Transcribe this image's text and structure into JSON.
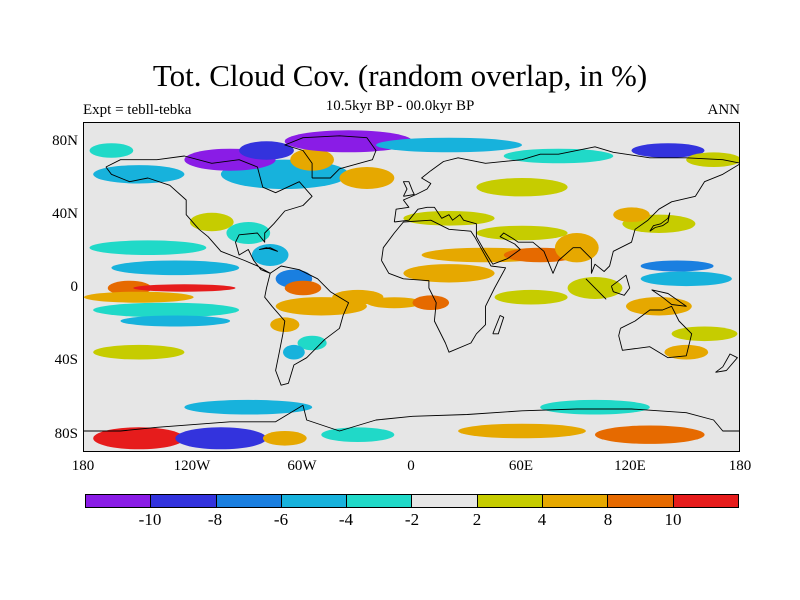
{
  "title": "Tot. Cloud Cov. (random overlap, in %)",
  "subtitle_left": "Expt = tebll-tebka",
  "subtitle_center": "10.5kyr BP - 00.0kyr BP",
  "subtitle_right": "ANN",
  "x_axis": {
    "ticks": [
      "180",
      "120W",
      "60W",
      "0",
      "60E",
      "120E",
      "180"
    ],
    "values": [
      -180,
      -120,
      -60,
      0,
      60,
      120,
      180
    ]
  },
  "y_axis": {
    "ticks": [
      "80N",
      "40N",
      "0",
      "40S",
      "80S"
    ],
    "values": [
      80,
      40,
      0,
      -40,
      -80
    ]
  },
  "extent": {
    "lon": [
      -180,
      180
    ],
    "lat": [
      -90,
      90
    ]
  },
  "colorbar": {
    "labels": [
      "-10",
      "-8",
      "-6",
      "-4",
      "-2",
      "2",
      "4",
      "8",
      "10"
    ],
    "colors": [
      "#8a1ce6",
      "#3333dd",
      "#1a7fe0",
      "#17b2dc",
      "#20d9c8",
      "#e6e6e6",
      "#c6cc00",
      "#e6a800",
      "#e66a00",
      "#e61c1c"
    ]
  },
  "background_color": "#e6e6e6",
  "regions": [
    {
      "lon": -155,
      "lat": 0,
      "rx": 12,
      "ry": 4,
      "color": "#e66a00"
    },
    {
      "lon": -125,
      "lat": 0,
      "rx": 28,
      "ry": 2,
      "color": "#e61c1c"
    },
    {
      "lon": -150,
      "lat": -5,
      "rx": 30,
      "ry": 3,
      "color": "#e6a800"
    },
    {
      "lon": -130,
      "lat": 11,
      "rx": 35,
      "ry": 4,
      "color": "#17b2dc"
    },
    {
      "lon": -145,
      "lat": 22,
      "rx": 32,
      "ry": 4,
      "color": "#20d9c8"
    },
    {
      "lon": -135,
      "lat": -12,
      "rx": 40,
      "ry": 4,
      "color": "#20d9c8"
    },
    {
      "lon": -130,
      "lat": -18,
      "rx": 30,
      "ry": 3,
      "color": "#17b2dc"
    },
    {
      "lon": -150,
      "lat": -35,
      "rx": 25,
      "ry": 4,
      "color": "#c6cc00"
    },
    {
      "lon": -110,
      "lat": 36,
      "rx": 12,
      "ry": 5,
      "color": "#c6cc00"
    },
    {
      "lon": -90,
      "lat": 30,
      "rx": 12,
      "ry": 6,
      "color": "#20d9c8"
    },
    {
      "lon": -78,
      "lat": 18,
      "rx": 10,
      "ry": 6,
      "color": "#17b2dc"
    },
    {
      "lon": -65,
      "lat": 5,
      "rx": 10,
      "ry": 5,
      "color": "#1a7fe0"
    },
    {
      "lon": -60,
      "lat": 0,
      "rx": 10,
      "ry": 4,
      "color": "#e66a00"
    },
    {
      "lon": -50,
      "lat": -10,
      "rx": 25,
      "ry": 5,
      "color": "#e6a800"
    },
    {
      "lon": -70,
      "lat": -20,
      "rx": 8,
      "ry": 4,
      "color": "#e6a800"
    },
    {
      "lon": -55,
      "lat": -30,
      "rx": 8,
      "ry": 4,
      "color": "#20d9c8"
    },
    {
      "lon": -65,
      "lat": -35,
      "rx": 6,
      "ry": 4,
      "color": "#17b2dc"
    },
    {
      "lon": -30,
      "lat": -5,
      "rx": 14,
      "ry": 4,
      "color": "#e6a800"
    },
    {
      "lon": -10,
      "lat": -8,
      "rx": 15,
      "ry": 3,
      "color": "#e6a800"
    },
    {
      "lon": 10,
      "lat": -8,
      "rx": 10,
      "ry": 4,
      "color": "#e66a00"
    },
    {
      "lon": 20,
      "lat": 8,
      "rx": 25,
      "ry": 5,
      "color": "#e6a800"
    },
    {
      "lon": 40,
      "lat": 18,
      "rx": 35,
      "ry": 4,
      "color": "#e6a800"
    },
    {
      "lon": 70,
      "lat": 18,
      "rx": 20,
      "ry": 4,
      "color": "#e66a00"
    },
    {
      "lon": 90,
      "lat": 22,
      "rx": 12,
      "ry": 8,
      "color": "#e6a800"
    },
    {
      "lon": 60,
      "lat": 30,
      "rx": 25,
      "ry": 4,
      "color": "#c6cc00"
    },
    {
      "lon": 65,
      "lat": -5,
      "rx": 20,
      "ry": 4,
      "color": "#c6cc00"
    },
    {
      "lon": 100,
      "lat": 0,
      "rx": 15,
      "ry": 6,
      "color": "#c6cc00"
    },
    {
      "lon": 150,
      "lat": 5,
      "rx": 25,
      "ry": 4,
      "color": "#17b2dc"
    },
    {
      "lon": 145,
      "lat": 12,
      "rx": 20,
      "ry": 3,
      "color": "#1a7fe0"
    },
    {
      "lon": 135,
      "lat": -10,
      "rx": 18,
      "ry": 5,
      "color": "#e6a800"
    },
    {
      "lon": 160,
      "lat": -25,
      "rx": 18,
      "ry": 4,
      "color": "#c6cc00"
    },
    {
      "lon": 150,
      "lat": -35,
      "rx": 12,
      "ry": 4,
      "color": "#e6a800"
    },
    {
      "lon": 135,
      "lat": 35,
      "rx": 20,
      "ry": 5,
      "color": "#c6cc00"
    },
    {
      "lon": 120,
      "lat": 40,
      "rx": 10,
      "ry": 4,
      "color": "#e6a800"
    },
    {
      "lon": 20,
      "lat": 38,
      "rx": 25,
      "ry": 4,
      "color": "#c6cc00"
    },
    {
      "lon": -70,
      "lat": 62,
      "rx": 35,
      "ry": 8,
      "color": "#17b2dc"
    },
    {
      "lon": -100,
      "lat": 70,
      "rx": 25,
      "ry": 6,
      "color": "#8a1ce6"
    },
    {
      "lon": -80,
      "lat": 75,
      "rx": 15,
      "ry": 5,
      "color": "#3333dd"
    },
    {
      "lon": -55,
      "lat": 70,
      "rx": 12,
      "ry": 6,
      "color": "#e6a800"
    },
    {
      "lon": -25,
      "lat": 60,
      "rx": 15,
      "ry": 6,
      "color": "#e6a800"
    },
    {
      "lon": -35,
      "lat": 80,
      "rx": 35,
      "ry": 6,
      "color": "#8a1ce6"
    },
    {
      "lon": 20,
      "lat": 78,
      "rx": 40,
      "ry": 4,
      "color": "#17b2dc"
    },
    {
      "lon": 80,
      "lat": 72,
      "rx": 30,
      "ry": 4,
      "color": "#20d9c8"
    },
    {
      "lon": 140,
      "lat": 75,
      "rx": 20,
      "ry": 4,
      "color": "#3333dd"
    },
    {
      "lon": 165,
      "lat": 70,
      "rx": 15,
      "ry": 4,
      "color": "#c6cc00"
    },
    {
      "lon": 60,
      "lat": 55,
      "rx": 25,
      "ry": 5,
      "color": "#c6cc00"
    },
    {
      "lon": -150,
      "lat": 62,
      "rx": 25,
      "ry": 5,
      "color": "#17b2dc"
    },
    {
      "lon": -165,
      "lat": 75,
      "rx": 12,
      "ry": 4,
      "color": "#20d9c8"
    },
    {
      "lon": -150,
      "lat": -82,
      "rx": 25,
      "ry": 6,
      "color": "#e61c1c"
    },
    {
      "lon": -105,
      "lat": -82,
      "rx": 25,
      "ry": 6,
      "color": "#3333dd"
    },
    {
      "lon": -70,
      "lat": -82,
      "rx": 12,
      "ry": 4,
      "color": "#e6a800"
    },
    {
      "lon": -30,
      "lat": -80,
      "rx": 20,
      "ry": 4,
      "color": "#20d9c8"
    },
    {
      "lon": 60,
      "lat": -78,
      "rx": 35,
      "ry": 4,
      "color": "#e6a800"
    },
    {
      "lon": 130,
      "lat": -80,
      "rx": 30,
      "ry": 5,
      "color": "#e66a00"
    },
    {
      "lon": 100,
      "lat": -65,
      "rx": 30,
      "ry": 4,
      "color": "#20d9c8"
    },
    {
      "lon": -90,
      "lat": -65,
      "rx": 35,
      "ry": 4,
      "color": "#17b2dc"
    }
  ],
  "coastlines": [
    [
      [
        -168,
        66
      ],
      [
        -160,
        70
      ],
      [
        -140,
        70
      ],
      [
        -125,
        72
      ],
      [
        -110,
        68
      ],
      [
        -95,
        70
      ],
      [
        -85,
        66
      ],
      [
        -82,
        55
      ],
      [
        -75,
        52
      ],
      [
        -62,
        58
      ],
      [
        -55,
        50
      ],
      [
        -60,
        45
      ],
      [
        -70,
        42
      ],
      [
        -76,
        35
      ],
      [
        -81,
        30
      ],
      [
        -81,
        25
      ],
      [
        -85,
        30
      ],
      [
        -95,
        29
      ],
      [
        -97,
        25
      ],
      [
        -95,
        18
      ],
      [
        -90,
        21
      ],
      [
        -87,
        15
      ],
      [
        -83,
        10
      ],
      [
        -78,
        8
      ],
      [
        -85,
        12
      ],
      [
        -92,
        15
      ],
      [
        -105,
        20
      ],
      [
        -112,
        28
      ],
      [
        -117,
        32
      ],
      [
        -124,
        40
      ],
      [
        -124,
        48
      ],
      [
        -133,
        56
      ],
      [
        -145,
        60
      ],
      [
        -155,
        58
      ],
      [
        -165,
        62
      ],
      [
        -168,
        66
      ]
    ],
    [
      [
        -78,
        8
      ],
      [
        -72,
        12
      ],
      [
        -62,
        10
      ],
      [
        -52,
        5
      ],
      [
        -45,
        -2
      ],
      [
        -35,
        -8
      ],
      [
        -38,
        -15
      ],
      [
        -40,
        -22
      ],
      [
        -48,
        -28
      ],
      [
        -58,
        -38
      ],
      [
        -65,
        -42
      ],
      [
        -68,
        -52
      ],
      [
        -72,
        -53
      ],
      [
        -75,
        -45
      ],
      [
        -73,
        -35
      ],
      [
        -71,
        -25
      ],
      [
        -70,
        -18
      ],
      [
        -77,
        -10
      ],
      [
        -81,
        -5
      ],
      [
        -80,
        0
      ],
      [
        -78,
        8
      ]
    ],
    [
      [
        -17,
        15
      ],
      [
        -16,
        22
      ],
      [
        -10,
        30
      ],
      [
        -5,
        36
      ],
      [
        10,
        37
      ],
      [
        20,
        32
      ],
      [
        32,
        31
      ],
      [
        34,
        28
      ],
      [
        43,
        12
      ],
      [
        51,
        11
      ],
      [
        45,
        0
      ],
      [
        40,
        -10
      ],
      [
        40,
        -20
      ],
      [
        35,
        -25
      ],
      [
        32,
        -30
      ],
      [
        20,
        -35
      ],
      [
        18,
        -30
      ],
      [
        12,
        -18
      ],
      [
        13,
        -8
      ],
      [
        9,
        0
      ],
      [
        9,
        4
      ],
      [
        -5,
        5
      ],
      [
        -13,
        8
      ],
      [
        -17,
        15
      ]
    ],
    [
      [
        -10,
        36
      ],
      [
        -9,
        43
      ],
      [
        -2,
        44
      ],
      [
        -5,
        48
      ],
      [
        2,
        51
      ],
      [
        8,
        54
      ],
      [
        10,
        57
      ],
      [
        5,
        60
      ],
      [
        10,
        64
      ],
      [
        17,
        69
      ],
      [
        25,
        71
      ],
      [
        40,
        68
      ],
      [
        60,
        70
      ],
      [
        70,
        73
      ],
      [
        80,
        73
      ],
      [
        100,
        77
      ],
      [
        110,
        74
      ],
      [
        130,
        71
      ],
      [
        150,
        71
      ],
      [
        170,
        70
      ],
      [
        180,
        68
      ],
      [
        170,
        62
      ],
      [
        160,
        58
      ],
      [
        155,
        50
      ],
      [
        142,
        47
      ],
      [
        135,
        43
      ],
      [
        129,
        37
      ],
      [
        122,
        32
      ],
      [
        120,
        25
      ],
      [
        110,
        20
      ],
      [
        108,
        12
      ],
      [
        105,
        9
      ],
      [
        100,
        13
      ],
      [
        98,
        8
      ],
      [
        98,
        16
      ],
      [
        92,
        22
      ],
      [
        88,
        22
      ],
      [
        80,
        15
      ],
      [
        77,
        8
      ],
      [
        72,
        20
      ],
      [
        66,
        25
      ],
      [
        58,
        25
      ],
      [
        55,
        27
      ],
      [
        50,
        30
      ],
      [
        48,
        28
      ],
      [
        56,
        24
      ],
      [
        59,
        21
      ],
      [
        52,
        16
      ],
      [
        44,
        13
      ],
      [
        39,
        21
      ],
      [
        35,
        28
      ],
      [
        35,
        35
      ],
      [
        28,
        37
      ],
      [
        26,
        40
      ],
      [
        22,
        37
      ],
      [
        20,
        40
      ],
      [
        16,
        38
      ],
      [
        12,
        44
      ],
      [
        8,
        44
      ],
      [
        3,
        43
      ],
      [
        -2,
        37
      ],
      [
        -10,
        36
      ]
    ],
    [
      [
        114,
        -22
      ],
      [
        122,
        -18
      ],
      [
        130,
        -12
      ],
      [
        137,
        -12
      ],
      [
        142,
        -10
      ],
      [
        146,
        -18
      ],
      [
        153,
        -25
      ],
      [
        150,
        -37
      ],
      [
        140,
        -38
      ],
      [
        135,
        -35
      ],
      [
        130,
        -32
      ],
      [
        115,
        -34
      ],
      [
        113,
        -26
      ],
      [
        114,
        -22
      ]
    ],
    [
      [
        -55,
        60
      ],
      [
        -45,
        60
      ],
      [
        -40,
        65
      ],
      [
        -22,
        70
      ],
      [
        -20,
        75
      ],
      [
        -25,
        82
      ],
      [
        -40,
        83
      ],
      [
        -60,
        82
      ],
      [
        -70,
        78
      ],
      [
        -60,
        75
      ],
      [
        -55,
        68
      ],
      [
        -55,
        60
      ]
    ],
    [
      [
        -180,
        -78
      ],
      [
        -160,
        -78
      ],
      [
        -140,
        -76
      ],
      [
        -100,
        -73
      ],
      [
        -75,
        -73
      ],
      [
        -60,
        -64
      ],
      [
        -58,
        -72
      ],
      [
        -40,
        -78
      ],
      [
        -20,
        -72
      ],
      [
        0,
        -70
      ],
      [
        30,
        -69
      ],
      [
        60,
        -67
      ],
      [
        90,
        -66
      ],
      [
        120,
        -66
      ],
      [
        150,
        -68
      ],
      [
        165,
        -72
      ],
      [
        170,
        -78
      ],
      [
        180,
        -78
      ]
    ],
    [
      [
        -5,
        50
      ],
      [
        -3,
        54
      ],
      [
        -5,
        58
      ],
      [
        -2,
        58
      ],
      [
        0,
        53
      ],
      [
        1,
        51
      ],
      [
        -5,
        50
      ]
    ],
    [
      [
        130,
        31
      ],
      [
        132,
        34
      ],
      [
        136,
        35
      ],
      [
        140,
        38
      ],
      [
        141,
        41
      ],
      [
        140,
        36
      ],
      [
        137,
        34
      ],
      [
        133,
        33
      ],
      [
        130,
        31
      ]
    ],
    [
      [
        95,
        5
      ],
      [
        105,
        -5
      ],
      [
        106,
        -6
      ],
      [
        102,
        -2
      ],
      [
        95,
        5
      ]
    ],
    [
      [
        109,
        1
      ],
      [
        117,
        7
      ],
      [
        119,
        0
      ],
      [
        116,
        -4
      ],
      [
        110,
        -2
      ],
      [
        109,
        1
      ]
    ],
    [
      [
        131,
        -1
      ],
      [
        140,
        -3
      ],
      [
        150,
        -10
      ],
      [
        142,
        -9
      ],
      [
        137,
        -5
      ],
      [
        131,
        -1
      ]
    ],
    [
      [
        166,
        -46
      ],
      [
        170,
        -43
      ],
      [
        174,
        -36
      ],
      [
        178,
        -38
      ],
      [
        172,
        -45
      ],
      [
        166,
        -46
      ]
    ],
    [
      [
        44,
        -25
      ],
      [
        48,
        -15
      ],
      [
        50,
        -16
      ],
      [
        47,
        -25
      ],
      [
        44,
        -25
      ]
    ],
    [
      [
        -84,
        21
      ],
      [
        -78,
        22
      ],
      [
        -74,
        20
      ],
      [
        -80,
        22
      ],
      [
        -84,
        21
      ]
    ]
  ]
}
